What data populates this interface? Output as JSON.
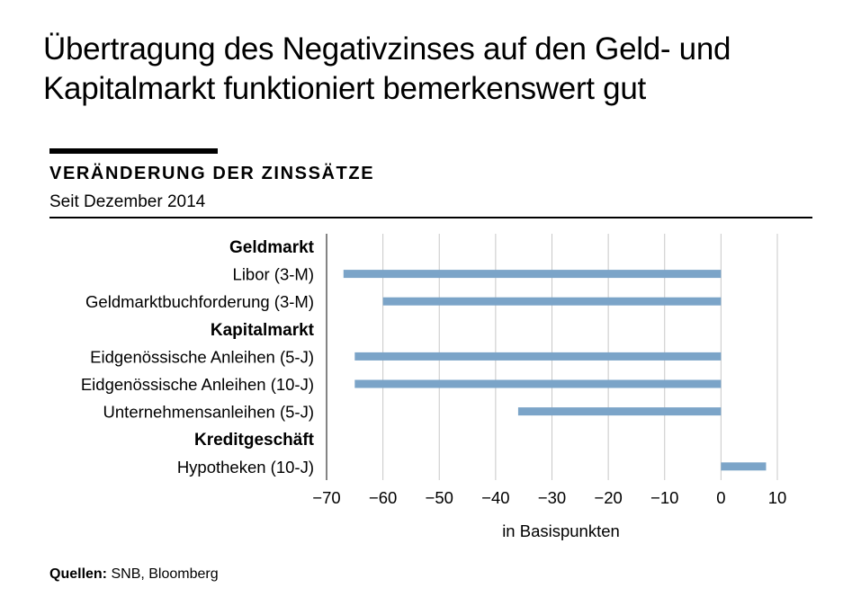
{
  "headline": "Übertragung des Negativzinses auf den Geld- und Kapitalmarkt funktioniert bemerkenswert gut",
  "chart_header": {
    "title": "VERÄNDERUNG DER ZINSSÄTZE",
    "subtitle": "Seit Dezember 2014"
  },
  "chart_data": {
    "type": "bar",
    "orientation": "horizontal",
    "title": "VERÄNDERUNG DER ZINSSÄTZE",
    "subtitle": "Seit Dezember 2014",
    "xlabel": "in Basispunkten",
    "ylabel": "",
    "xlim": [
      -70,
      10
    ],
    "xticks": [
      -70,
      -60,
      -50,
      -40,
      -30,
      -20,
      -10,
      0,
      10
    ],
    "xtick_labels": [
      "−70",
      "−60",
      "−50",
      "−40",
      "−30",
      "−20",
      "−10",
      "0",
      "10"
    ],
    "grid": "vertical",
    "bar_color": "#7ba4c8",
    "rows": [
      {
        "label": "Geldmarkt",
        "group": true
      },
      {
        "label": "Libor (3-M)",
        "value": -67
      },
      {
        "label": "Geldmarktbuchforderung (3-M)",
        "value": -60
      },
      {
        "label": "Kapitalmarkt",
        "group": true
      },
      {
        "label": "Eidgenössische Anleihen (5-J)",
        "value": -65
      },
      {
        "label": "Eidgenössische Anleihen (10-J)",
        "value": -65
      },
      {
        "label": "Unternehmensanleihen (5-J)",
        "value": -36
      },
      {
        "label": "Kreditgeschäft",
        "group": true
      },
      {
        "label": "Hypotheken (10-J)",
        "value": 8
      }
    ]
  },
  "source": {
    "label": "Quellen:",
    "text": " SNB, Bloomberg"
  }
}
